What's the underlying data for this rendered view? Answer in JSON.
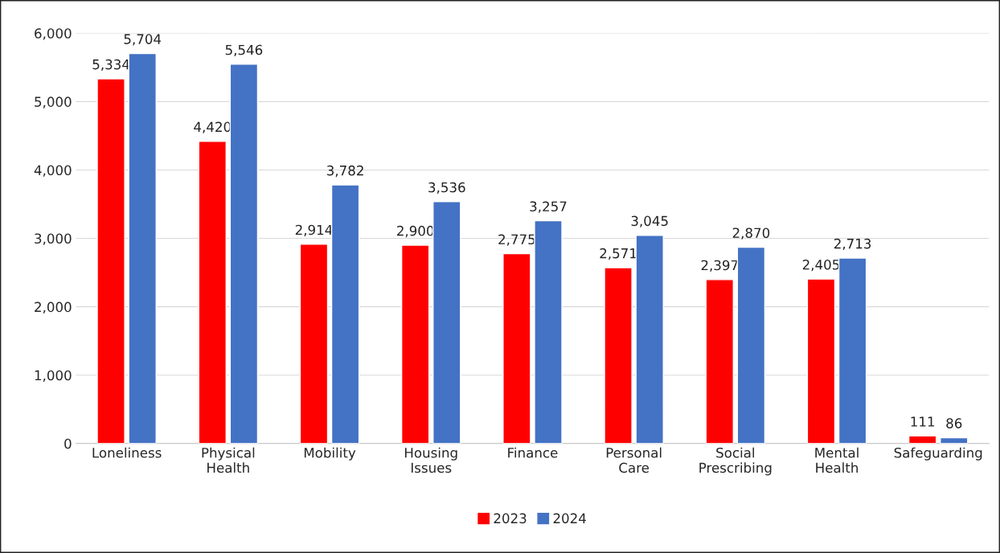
{
  "chart_data": {
    "type": "bar",
    "categories": [
      "Loneliness",
      "Physical Health",
      "Mobility",
      "Housing Issues",
      "Finance",
      "Personal Care",
      "Social Prescribing",
      "Mental Health",
      "Safeguarding"
    ],
    "series": [
      {
        "name": "2023",
        "color": "#ff0000",
        "values": [
          5334,
          4420,
          2914,
          2900,
          2775,
          2571,
          2397,
          2405,
          111
        ],
        "value_labels": [
          "5,334",
          "4,420",
          "2,914",
          "2,900",
          "2,775",
          "2,571",
          "2,397",
          "2,405",
          "111"
        ]
      },
      {
        "name": "2024",
        "color": "#4472c4",
        "values": [
          5704,
          5546,
          3782,
          3536,
          3257,
          3045,
          2870,
          2713,
          86
        ],
        "value_labels": [
          "5,704",
          "5,546",
          "3,782",
          "3,536",
          "3,257",
          "3,045",
          "2,870",
          "2,713",
          "86"
        ]
      }
    ],
    "ylim": [
      0,
      6000
    ],
    "yticks": [
      {
        "value": 0,
        "label": "0"
      },
      {
        "value": 1000,
        "label": "1,000"
      },
      {
        "value": 2000,
        "label": "2,000"
      },
      {
        "value": 3000,
        "label": "3,000"
      },
      {
        "value": 4000,
        "label": "4,000"
      },
      {
        "value": 5000,
        "label": "5,000"
      },
      {
        "value": 6000,
        "label": "6,000"
      }
    ],
    "grid": "y",
    "legend": "bottom"
  }
}
